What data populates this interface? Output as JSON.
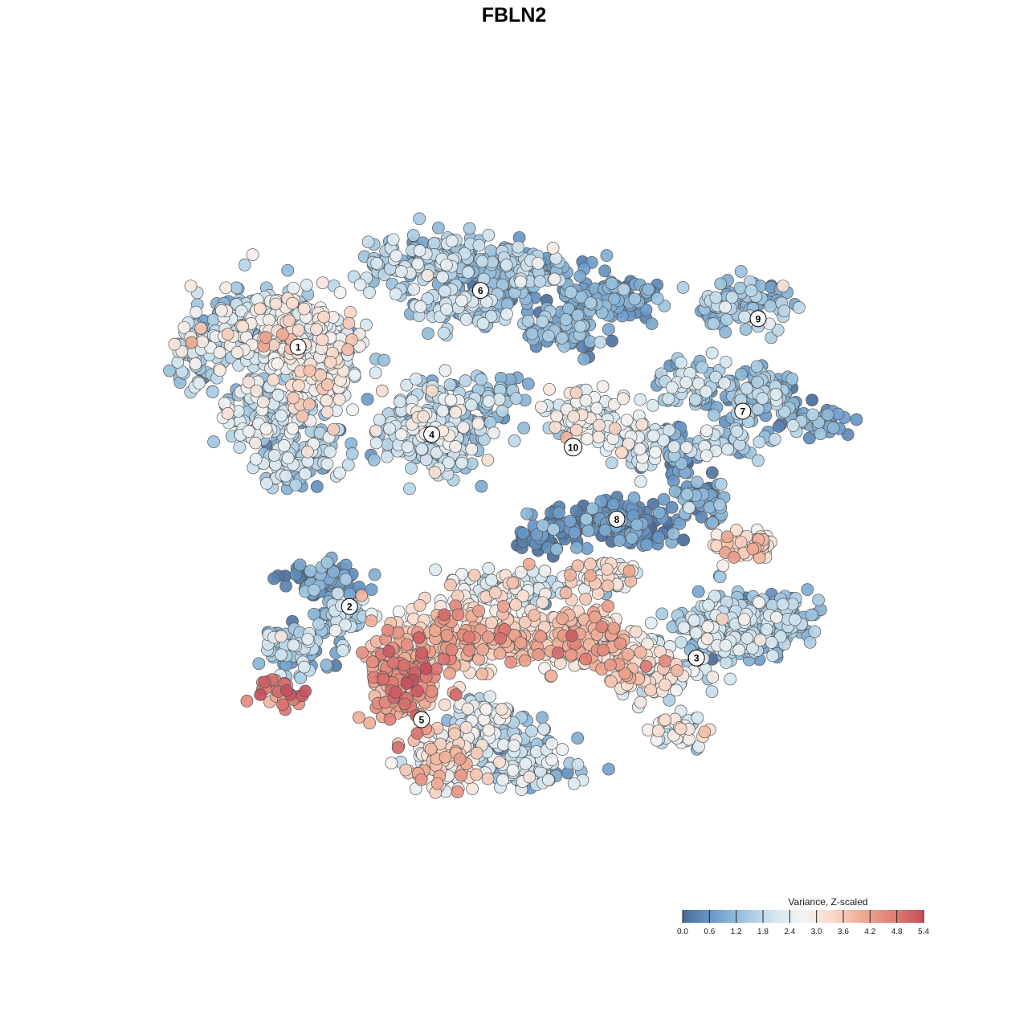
{
  "chart_data": {
    "type": "scatter",
    "title": "FBLN2",
    "xlabel": "",
    "ylabel": "",
    "axes_visible": false,
    "grid": false,
    "legend": {
      "title": "Variance, Z-scaled",
      "placement": "bottom-right",
      "range": [
        0.0,
        5.4
      ],
      "ticks": [
        "0.0",
        "0.6",
        "1.2",
        "1.8",
        "2.4",
        "3.0",
        "3.6",
        "4.2",
        "4.8",
        "5.4"
      ],
      "colormap": [
        "#4a6d99",
        "#6b9bc9",
        "#9cc4de",
        "#d1e4ef",
        "#f4f4f4",
        "#f8d8c8",
        "#eeaa92",
        "#df7f76",
        "#c44e5c"
      ]
    },
    "clusters": [
      {
        "label": "1",
        "x": -8.4,
        "y": 6.5,
        "mean_value": 2.2
      },
      {
        "label": "2",
        "x": -6.4,
        "y": -3.6,
        "mean_value": 1.3
      },
      {
        "label": "3",
        "x": 7.1,
        "y": -5.6,
        "mean_value": 1.7
      },
      {
        "label": "4",
        "x": -3.2,
        "y": 3.1,
        "mean_value": 1.6
      },
      {
        "label": "5",
        "x": -3.6,
        "y": -8.0,
        "mean_value": 3.4
      },
      {
        "label": "6",
        "x": -1.3,
        "y": 8.7,
        "mean_value": 1.0
      },
      {
        "label": "7",
        "x": 8.9,
        "y": 4.0,
        "mean_value": 1.1
      },
      {
        "label": "8",
        "x": 4.0,
        "y": -0.2,
        "mean_value": 0.4
      },
      {
        "label": "9",
        "x": 9.5,
        "y": 7.6,
        "mean_value": 1.3
      },
      {
        "label": "10",
        "x": 2.3,
        "y": 2.6,
        "mean_value": 2.2
      }
    ],
    "highlights": [
      {
        "where": "lower-left arm",
        "x": -9.2,
        "y": -6.8,
        "value": 5.1
      },
      {
        "where": "cluster 5 core",
        "x": -4.2,
        "y": -6.2,
        "value": 4.6
      },
      {
        "where": "center band",
        "x": 0.4,
        "y": -4.3,
        "value": 4.2
      },
      {
        "where": "cluster 8 right blob",
        "x": 6.2,
        "y": -1.6,
        "value": 3.4
      }
    ]
  }
}
